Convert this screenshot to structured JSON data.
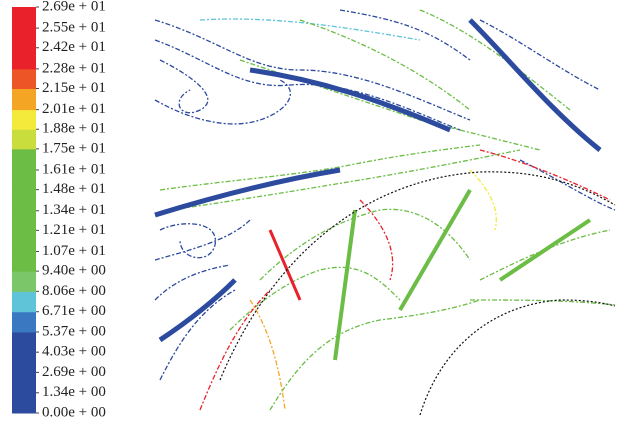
{
  "chart_data": {
    "type": "streamline",
    "colorbar": {
      "ylim": [
        0,
        26.9
      ],
      "ticks": [
        {
          "value": 0,
          "label": "0.00e + 00"
        },
        {
          "value": 1.34,
          "label": "1.34e + 00"
        },
        {
          "value": 2.69,
          "label": "2.69e + 00"
        },
        {
          "value": 4.03,
          "label": "4.03e + 00"
        },
        {
          "value": 5.37,
          "label": "5.37e + 00"
        },
        {
          "value": 6.71,
          "label": "6.71e + 00"
        },
        {
          "value": 8.06,
          "label": "8.06e + 00"
        },
        {
          "value": 9.4,
          "label": "9.40e + 00"
        },
        {
          "value": 10.7,
          "label": "1.07e + 01"
        },
        {
          "value": 12.1,
          "label": "1.21e + 01"
        },
        {
          "value": 13.4,
          "label": "1.34e + 01"
        },
        {
          "value": 14.8,
          "label": "1.48e + 01"
        },
        {
          "value": 16.1,
          "label": "1.61e + 01"
        },
        {
          "value": 17.5,
          "label": "1.75e + 01"
        },
        {
          "value": 18.8,
          "label": "1.88e + 01"
        },
        {
          "value": 20.1,
          "label": "2.01e + 01"
        },
        {
          "value": 21.5,
          "label": "2.15e + 01"
        },
        {
          "value": 22.8,
          "label": "2.28e + 01"
        },
        {
          "value": 24.2,
          "label": "2.42e + 01"
        },
        {
          "value": 25.5,
          "label": "2.55e + 01"
        },
        {
          "value": 26.9,
          "label": "2.69e + 01"
        }
      ],
      "colors": [
        "#2c4a9e",
        "#2c4a9e",
        "#2c4a9e",
        "#2c4a9e",
        "#3a78c2",
        "#5fc4d8",
        "#7cc66a",
        "#6bbd45",
        "#6bbd45",
        "#6bbd45",
        "#6bbd45",
        "#6bbd45",
        "#6bbd45",
        "#c9dd3c",
        "#f4ea3c",
        "#f5a524",
        "#ee5526",
        "#e8212a",
        "#e8212a",
        "#e8212a"
      ]
    }
  }
}
